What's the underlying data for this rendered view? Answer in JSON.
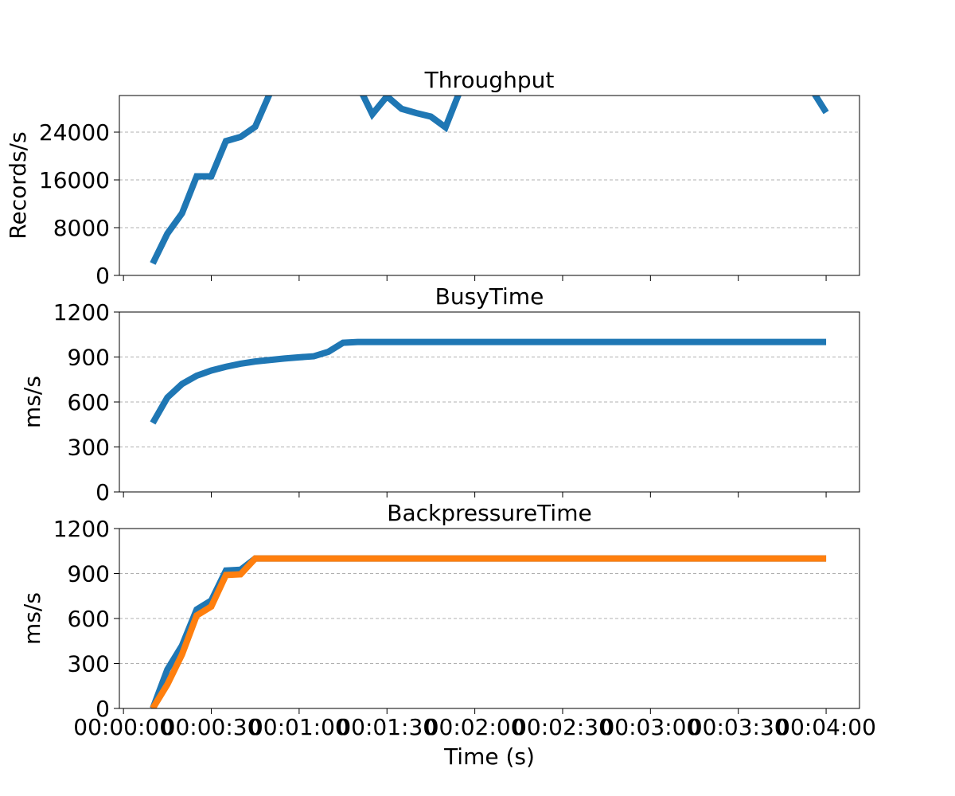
{
  "chart_data": [
    {
      "type": "line",
      "title": "Throughput",
      "ylabel": "Records/s",
      "x": [
        10,
        15,
        20,
        25,
        30,
        35,
        40,
        45,
        50,
        55,
        60,
        65,
        70,
        75,
        80,
        85,
        90,
        95,
        100,
        105,
        110,
        115,
        120,
        125,
        130,
        135,
        140,
        145,
        150,
        155,
        160,
        165,
        170,
        175,
        180,
        185,
        190,
        195,
        200,
        205,
        210,
        215,
        220,
        225,
        230,
        235,
        240
      ],
      "xlim": [
        -1.4,
        251.4
      ],
      "xticks": [
        0,
        30,
        60,
        90,
        120,
        150,
        180,
        210,
        240
      ],
      "ylim": [
        0,
        30133
      ],
      "yticks": [
        0,
        8000,
        16000,
        24000
      ],
      "grid": true,
      "series": [
        {
          "color": "#1f77b4",
          "values": [
            2000,
            7000,
            10400,
            16600,
            16600,
            22500,
            23200,
            24900,
            30500,
            32000,
            32000,
            32000,
            32000,
            32000,
            32000,
            27000,
            30000,
            27900,
            27200,
            26600,
            24800,
            31000,
            32000,
            32000,
            32000,
            32000,
            32000,
            32000,
            32000,
            32000,
            32000,
            32000,
            32000,
            32000,
            32000,
            32000,
            32000,
            32000,
            32000,
            32000,
            32000,
            32000,
            32000,
            32000,
            32000,
            31200,
            27300
          ]
        }
      ]
    },
    {
      "type": "line",
      "title": "BusyTime",
      "ylabel": "ms/s",
      "x": [
        10,
        15,
        20,
        25,
        30,
        35,
        40,
        45,
        50,
        55,
        60,
        65,
        70,
        75,
        80,
        85,
        90,
        95,
        100,
        105,
        110,
        115,
        120,
        125,
        130,
        135,
        140,
        145,
        150,
        155,
        160,
        165,
        170,
        175,
        180,
        185,
        190,
        195,
        200,
        205,
        210,
        215,
        220,
        225,
        230,
        235,
        240
      ],
      "xlim": [
        -1.4,
        251.4
      ],
      "xticks": [
        0,
        30,
        60,
        90,
        120,
        150,
        180,
        210,
        240
      ],
      "ylim": [
        0,
        1200
      ],
      "yticks": [
        0,
        300,
        600,
        900,
        1200
      ],
      "grid": true,
      "series": [
        {
          "color": "#1f77b4",
          "values": [
            460,
            630,
            720,
            775,
            810,
            835,
            855,
            870,
            880,
            890,
            898,
            905,
            935,
            995,
            1000,
            1000,
            1000,
            1000,
            1000,
            1000,
            1000,
            1000,
            1000,
            1000,
            1000,
            1000,
            1000,
            1000,
            1000,
            1000,
            1000,
            1000,
            1000,
            1000,
            1000,
            1000,
            1000,
            1000,
            1000,
            1000,
            1000,
            1000,
            1000,
            1000,
            1000,
            1000,
            1000
          ]
        }
      ]
    },
    {
      "type": "line",
      "title": "BackpressureTime",
      "ylabel": "ms/s",
      "xlabel": "Time (s)",
      "x": [
        10,
        15,
        20,
        25,
        30,
        35,
        40,
        45,
        50,
        55,
        60,
        65,
        70,
        75,
        80,
        85,
        90,
        95,
        100,
        105,
        110,
        115,
        120,
        125,
        130,
        135,
        140,
        145,
        150,
        155,
        160,
        165,
        170,
        175,
        180,
        185,
        190,
        195,
        200,
        205,
        210,
        215,
        220,
        225,
        230,
        235,
        240
      ],
      "xlim": [
        -1.4,
        251.4
      ],
      "xticks": [
        {
          "value": 0,
          "label": "00:00:00"
        },
        {
          "value": 30,
          "label": "00:00:30"
        },
        {
          "value": 60,
          "label": "00:01:00"
        },
        {
          "value": 90,
          "label": "00:01:30"
        },
        {
          "value": 120,
          "label": "00:02:00"
        },
        {
          "value": 150,
          "label": "00:02:30"
        },
        {
          "value": 180,
          "label": "00:03:00"
        },
        {
          "value": 210,
          "label": "00:03:30"
        },
        {
          "value": 240,
          "label": "00:04:00"
        }
      ],
      "ylim": [
        0,
        1200
      ],
      "yticks": [
        0,
        300,
        600,
        900,
        1200
      ],
      "grid": true,
      "series": [
        {
          "color": "#1f77b4",
          "values": [
            0,
            260,
            420,
            660,
            720,
            920,
            925,
            1000,
            1000,
            1000,
            1000,
            1000,
            1000,
            1000,
            1000,
            1000,
            1000,
            1000,
            1000,
            1000,
            1000,
            1000,
            1000,
            1000,
            1000,
            1000,
            1000,
            1000,
            1000,
            1000,
            1000,
            1000,
            1000,
            1000,
            1000,
            1000,
            1000,
            1000,
            1000,
            1000,
            1000,
            1000,
            1000,
            1000,
            1000,
            1000,
            1000
          ]
        },
        {
          "color": "#ff7f0e",
          "values": [
            0,
            160,
            360,
            620,
            680,
            890,
            895,
            1000,
            1000,
            1000,
            1000,
            1000,
            1000,
            1000,
            1000,
            1000,
            1000,
            1000,
            1000,
            1000,
            1000,
            1000,
            1000,
            1000,
            1000,
            1000,
            1000,
            1000,
            1000,
            1000,
            1000,
            1000,
            1000,
            1000,
            1000,
            1000,
            1000,
            1000,
            1000,
            1000,
            1000,
            1000,
            1000,
            1000,
            1000,
            1000,
            1000
          ]
        }
      ]
    }
  ]
}
